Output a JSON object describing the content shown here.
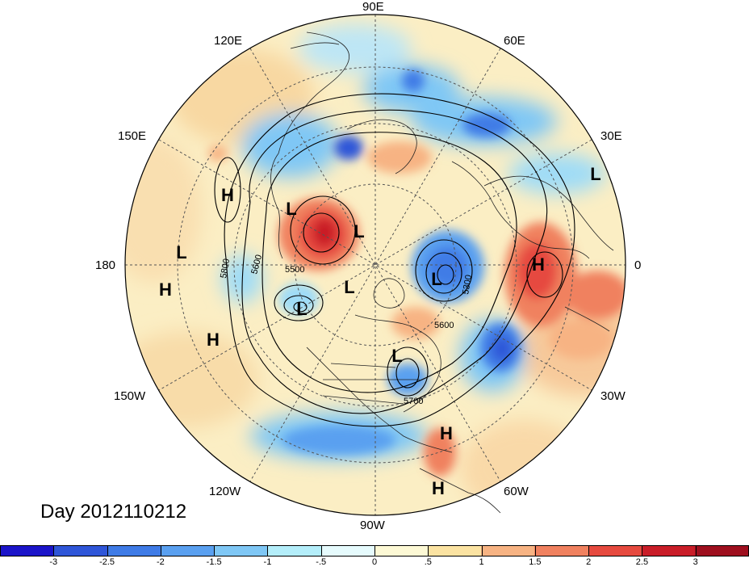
{
  "title": "Day 2012110212",
  "longitude_labels": {
    "north": "90E",
    "north_right": "60E",
    "right_upper": "30E",
    "right": "0",
    "right_lower": "30W",
    "south_right": "60W",
    "south": "90W",
    "south_left": "120W",
    "left_lower": "150W",
    "left": "180",
    "left_upper": "150E",
    "north_left": "120E"
  },
  "pressure_systems": [
    {
      "label": "L",
      "name": "low-central-arctic"
    },
    {
      "label": "L",
      "name": "low-north-pacific"
    },
    {
      "label": "L",
      "name": "low-north-atlantic"
    },
    {
      "label": "L",
      "name": "low-labrador"
    },
    {
      "label": "L",
      "name": "low-siberia"
    },
    {
      "label": "L",
      "name": "low-east-siberia"
    },
    {
      "label": "L",
      "name": "low-west-pacific"
    },
    {
      "label": "L",
      "name": "low-europe-east"
    },
    {
      "label": "H",
      "name": "high-africa"
    },
    {
      "label": "H",
      "name": "high-east-asia"
    },
    {
      "label": "H",
      "name": "high-central-pacific"
    },
    {
      "label": "H",
      "name": "high-hawaii"
    },
    {
      "label": "H",
      "name": "high-caribbean"
    },
    {
      "label": "H",
      "name": "high-south-america"
    }
  ],
  "contour_labels": [
    "5800",
    "5600",
    "5500",
    "5300",
    "5600",
    "5700"
  ],
  "colorbar": {
    "colors": [
      "#1b14c9",
      "#2f56d8",
      "#3f7be6",
      "#5aa0f0",
      "#7fc7f5",
      "#b4eefa",
      "#e6fbfd",
      "#fdf9d5",
      "#fbe3a2",
      "#f7b383",
      "#f0815f",
      "#e64a3f",
      "#c91d28",
      "#9e0f1e"
    ],
    "tick_labels": [
      "-3",
      "-2.5",
      "-2",
      "-1.5",
      "-1",
      "-.5",
      "0",
      ".5",
      "1",
      "1.5",
      "2",
      "2.5",
      "3"
    ]
  }
}
